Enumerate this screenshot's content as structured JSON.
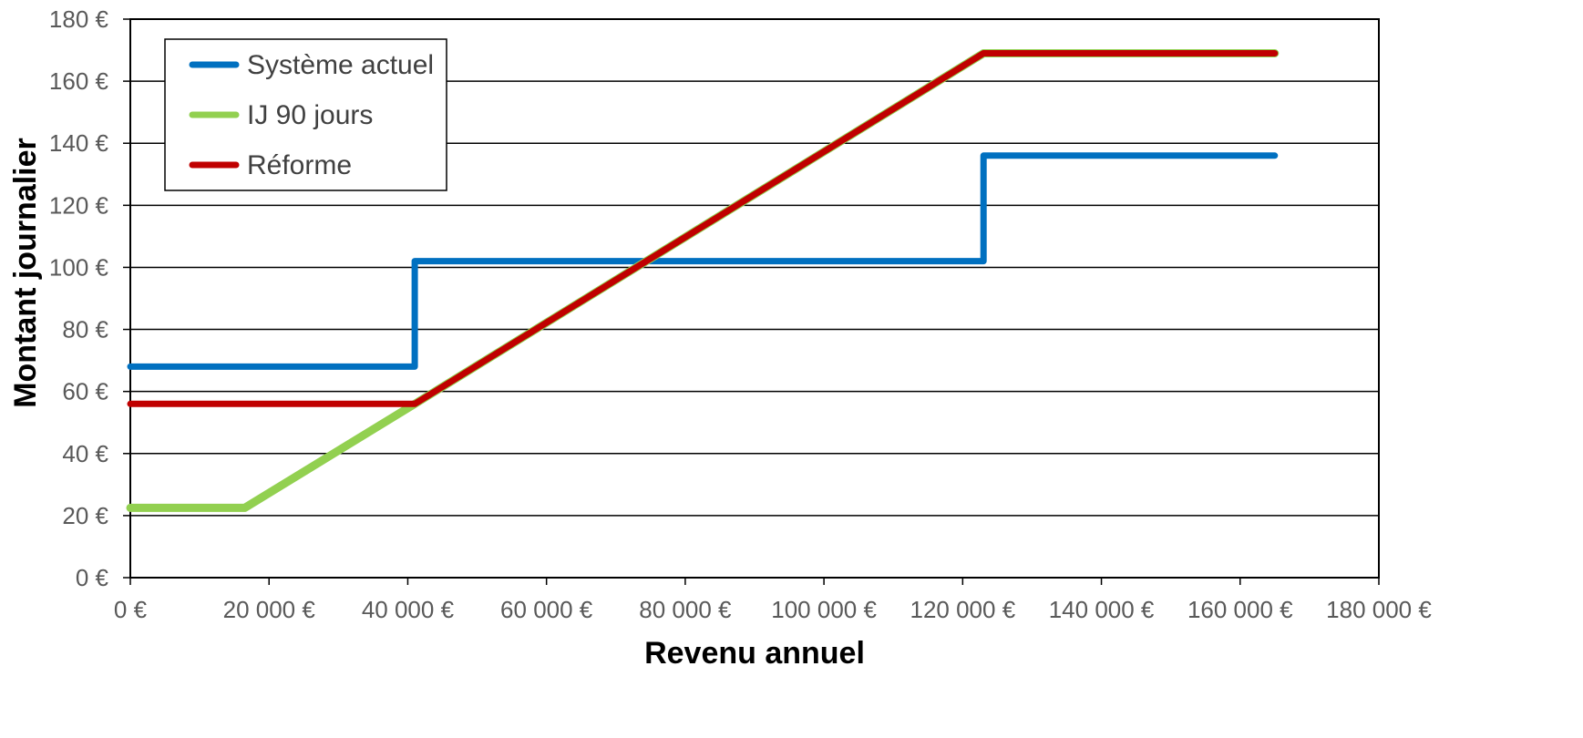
{
  "chart_data": {
    "type": "line",
    "title": "",
    "xlabel": "Revenu annuel",
    "ylabel": "Montant journalier",
    "xlim": [
      0,
      180000
    ],
    "ylim": [
      0,
      180
    ],
    "x_ticks": [
      0,
      20000,
      40000,
      60000,
      80000,
      100000,
      120000,
      140000,
      160000,
      180000
    ],
    "x_tick_labels": [
      "0 €",
      "20 000 €",
      "40 000 €",
      "60 000 €",
      "80 000 €",
      "100 000 €",
      "120 000 €",
      "140 000 €",
      "160 000 €",
      "180 000 €"
    ],
    "y_ticks": [
      0,
      20,
      40,
      60,
      80,
      100,
      120,
      140,
      160,
      180
    ],
    "y_tick_labels": [
      "0 €",
      "20 €",
      "40 €",
      "60 €",
      "80 €",
      "100 €",
      "120 €",
      "140 €",
      "160 €",
      "180 €"
    ],
    "grid": "horizontal",
    "legend_position": "top-left",
    "series": [
      {
        "name": "Système actuel",
        "color": "#0070C0",
        "points": [
          [
            0,
            68
          ],
          [
            41000,
            68
          ],
          [
            41000,
            102
          ],
          [
            123000,
            102
          ],
          [
            123000,
            136
          ],
          [
            165000,
            136
          ]
        ]
      },
      {
        "name": "IJ 90 jours",
        "color": "#92D050",
        "points": [
          [
            0,
            22.5
          ],
          [
            16500,
            22.5
          ],
          [
            41000,
            56
          ],
          [
            123000,
            169
          ],
          [
            165000,
            169
          ]
        ]
      },
      {
        "name": "Réforme",
        "color": "#C00000",
        "points": [
          [
            0,
            56
          ],
          [
            41000,
            56
          ],
          [
            123000,
            169
          ],
          [
            165000,
            169
          ]
        ]
      }
    ]
  }
}
